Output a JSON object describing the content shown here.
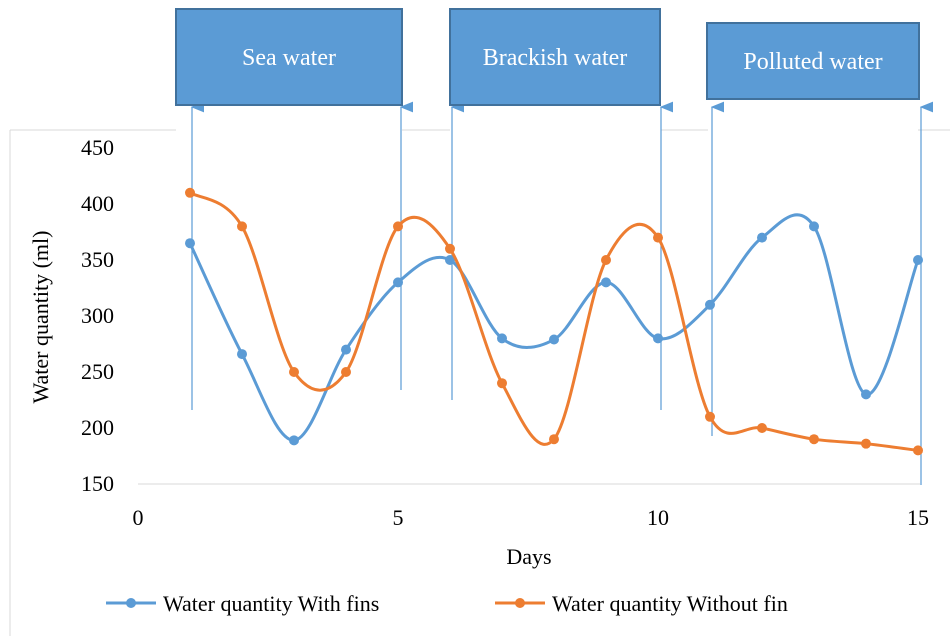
{
  "annotations": [
    {
      "label": "Sea water",
      "start_day": 1,
      "end_day": 5
    },
    {
      "label": "Brackish water",
      "start_day": 6,
      "end_day": 10
    },
    {
      "label": "Polluted water",
      "start_day": 11,
      "end_day": 15
    }
  ],
  "chart_data": {
    "type": "line",
    "xlabel": "Days",
    "ylabel": "Water quantity (ml)",
    "xlim": [
      0,
      15
    ],
    "ylim": [
      150,
      450
    ],
    "x_ticks": [
      0,
      5,
      10,
      15
    ],
    "y_ticks": [
      150,
      200,
      250,
      300,
      350,
      400,
      450
    ],
    "grid": false,
    "legend_position": "bottom",
    "smooth": true,
    "x": [
      1,
      2,
      3,
      4,
      5,
      6,
      7,
      8,
      9,
      10,
      11,
      12,
      13,
      14,
      15
    ],
    "series": [
      {
        "name": "Water quantity With fins",
        "color": "#5b9bd5",
        "values": [
          365,
          266,
          189,
          270,
          330,
          350,
          280,
          279,
          330,
          280,
          310,
          370,
          380,
          230,
          350
        ]
      },
      {
        "name": "Water quantity Without fin",
        "color": "#ed7d31",
        "values": [
          410,
          380,
          250,
          250,
          380,
          360,
          240,
          190,
          350,
          370,
          210,
          200,
          190,
          186,
          180
        ]
      }
    ]
  },
  "colors": {
    "annotation_box_fill": "#5b9bd5",
    "annotation_box_border": "#41719c",
    "annotation_text": "#ffffff",
    "axis_line": "#d9d9d9",
    "text": "#000000"
  }
}
